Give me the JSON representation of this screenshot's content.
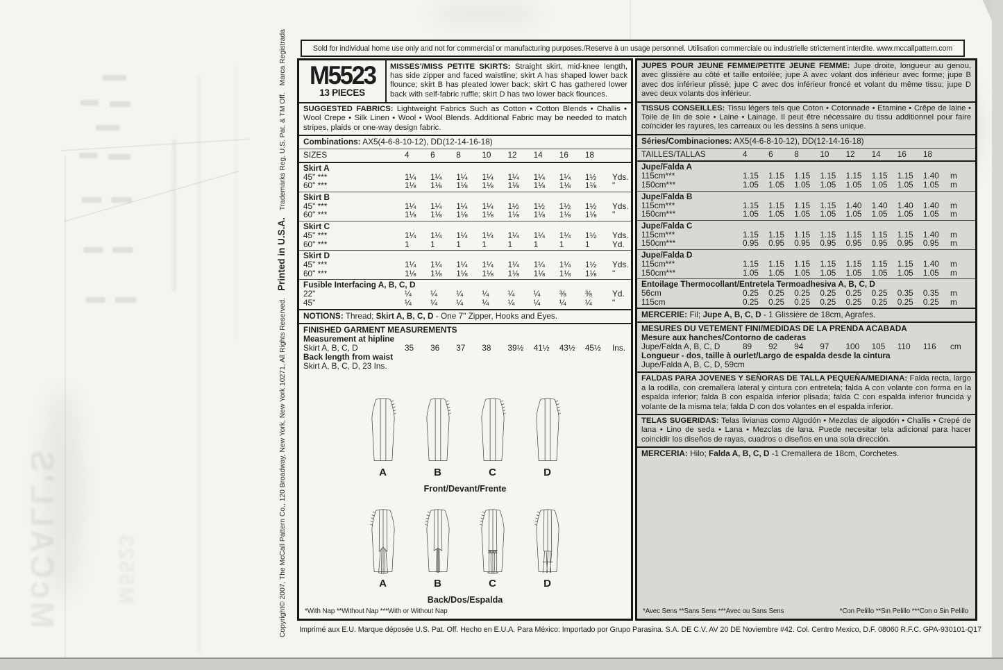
{
  "page": {
    "top_notice": "Sold for individual home use only and not for commercial or manufacturing purposes./Reserve à un usage personnel. Utilisation commerciale ou industrielle strictement interdite. www.mccallpattern.com",
    "bottom_notice": "Imprimé aux E.U. Marque déposée U.S. Pat. Off. Hecho en E.U.A. Para México: Importado por Grupo Parasina. S.A. DE C.V. AV 20 DE Noviembre #42.  Col. Centro Mexico, D.F. 08060 R.F.C. GPA-930101-Q17",
    "side_copyright": "Copyright© 2007, The McCall Pattern Co., 120 Broadway, New York, New York 10271, All Rights Reserved.",
    "side_printed": "Printed in U.S.A.",
    "side_trademarks": "Trademarks Reg. U.S. Pat. & TM Off.",
    "side_marca": "Marca Registrada",
    "ghost_brand": "McCALL'S",
    "ghost_number": "M5523"
  },
  "english": {
    "pattern_number": "M5523",
    "pieces": "13 PIECES",
    "description_title": "MISSES'/MISS PETITE SKIRTS:",
    "description_body": " Straight skirt, mid-knee length, has side zipper and faced waistline; skirt A has shaped lower back flounce; skirt B has pleated lower back; skirt C has gathered lower back with self-fabric ruffle; skirt D has two lower back flounces.",
    "fabrics_title": "SUGGESTED FABRICS:",
    "fabrics_body": " Lightweight Fabrics Such as Cotton • Cotton Blends • Challis • Wool Crepe • Silk Linen • Wool • Wool Blends. Additional Fabric may be needed to match stripes, plaids or one-way design fabric.",
    "combinations_label": "Combinations:",
    "combinations_value": " AX5(4-6-8-10-12), DD(12-14-16-18)",
    "sizes_label": "SIZES",
    "sizes": [
      "4",
      "6",
      "8",
      "10",
      "12",
      "14",
      "16",
      "18"
    ],
    "table": [
      {
        "name": "Skirt A",
        "rows": [
          {
            "label": "45\" ***",
            "values": [
              "1¼",
              "1¼",
              "1¼",
              "1¼",
              "1¼",
              "1¼",
              "1¼",
              "1½"
            ],
            "unit": "Yds."
          },
          {
            "label": "60\" ***",
            "values": [
              "1⅛",
              "1⅛",
              "1⅛",
              "1⅛",
              "1⅛",
              "1⅛",
              "1⅛",
              "1⅛"
            ],
            "unit": "\""
          }
        ]
      },
      {
        "name": "Skirt B",
        "rows": [
          {
            "label": "45\" ***",
            "values": [
              "1¼",
              "1¼",
              "1¼",
              "1¼",
              "1½",
              "1½",
              "1½",
              "1½"
            ],
            "unit": "Yds."
          },
          {
            "label": "60\" ***",
            "values": [
              "1⅛",
              "1⅛",
              "1⅛",
              "1⅛",
              "1⅛",
              "1⅛",
              "1⅛",
              "1⅛"
            ],
            "unit": "\""
          }
        ]
      },
      {
        "name": "Skirt C",
        "rows": [
          {
            "label": "45\" ***",
            "values": [
              "1¼",
              "1¼",
              "1¼",
              "1¼",
              "1¼",
              "1¼",
              "1¼",
              "1½"
            ],
            "unit": "Yds."
          },
          {
            "label": "60\" ***",
            "values": [
              "1",
              "1",
              "1",
              "1",
              "1",
              "1",
              "1",
              "1"
            ],
            "unit": "Yd."
          }
        ]
      },
      {
        "name": "Skirt D",
        "rows": [
          {
            "label": "45\" ***",
            "values": [
              "1¼",
              "1¼",
              "1¼",
              "1¼",
              "1¼",
              "1¼",
              "1¼",
              "1½"
            ],
            "unit": "Yds."
          },
          {
            "label": "60\" ***",
            "values": [
              "1⅛",
              "1⅛",
              "1⅛",
              "1⅛",
              "1⅛",
              "1⅛",
              "1⅛",
              "1⅛"
            ],
            "unit": "\""
          }
        ]
      },
      {
        "name": "Fusible Interfacing A, B, C, D",
        "rows": [
          {
            "label": "22\"",
            "values": [
              "¼",
              "¼",
              "¼",
              "¼",
              "¼",
              "¼",
              "⅜",
              "⅜"
            ],
            "unit": "Yd."
          },
          {
            "label": "45\"",
            "values": [
              "¼",
              "¼",
              "¼",
              "¼",
              "¼",
              "¼",
              "¼",
              "¼"
            ],
            "unit": "\""
          }
        ]
      }
    ],
    "notions_label": "NOTIONS:",
    "notions_pre": " Thread; ",
    "notions_bold": "Skirt A, B, C, D",
    "notions_post": " - One 7\" Zipper, Hooks and Eyes.",
    "finished_title": "FINISHED GARMENT MEASUREMENTS",
    "hipline_title": "Measurement at hipline",
    "hipline_label": "Skirt A, B, C, D",
    "hipline_values": [
      "35",
      "36",
      "37",
      "38",
      "39½",
      "41½",
      "43½",
      "45½"
    ],
    "hipline_unit": "Ins.",
    "backlength_title": "Back length from waist",
    "backlength_value": "Skirt A, B, C, D, 23 Ins.",
    "views": [
      "A",
      "B",
      "C",
      "D"
    ],
    "front_caption": "Front/Devant/Frente",
    "back_caption": "Back/Dos/Espalda",
    "footnote": "*With Nap **Without Nap ***With or Without Nap"
  },
  "french": {
    "description_title": "JUPES POUR JEUNE FEMME/PETITE JEUNE FEMME:",
    "description_body": " Jupe droite, longueur au genou, avec glissière au côté et taille entoilée; jupe A avec volant dos inférieur avec forme; jupe B avec dos inférieur plissé; jupe C avec dos inférieur froncé et volant du même tissu; jupe D avec deux volants dos inférieur.",
    "fabrics_title": "TISSUS CONSEILLES:",
    "fabrics_body": " Tissu légers tels que Coton • Cotonnade • Etamine • Crêpe de laine • Toile de lin de soie • Laine • Lainage. Il peut être nécessaire du tissu additionnel pour faire coïncider les rayures, les carreaux ou les dessins à sens unique.",
    "combinations_label": "Séries/Combinaciones:",
    "combinations_value": " AX5(4-6-8-10-12), DD(12-14-16-18)",
    "sizes_label": "TAILLES/TALLAS",
    "sizes": [
      "4",
      "6",
      "8",
      "10",
      "12",
      "14",
      "16",
      "18"
    ],
    "table": [
      {
        "name": "Jupe/Falda A",
        "rows": [
          {
            "label": "115cm***",
            "values": [
              "1.15",
              "1.15",
              "1.15",
              "1.15",
              "1.15",
              "1.15",
              "1.15",
              "1.40"
            ],
            "unit": "m"
          },
          {
            "label": "150cm***",
            "values": [
              "1.05",
              "1.05",
              "1.05",
              "1.05",
              "1.05",
              "1.05",
              "1.05",
              "1.05"
            ],
            "unit": "m"
          }
        ]
      },
      {
        "name": "Jupe/Falda B",
        "rows": [
          {
            "label": "115cm***",
            "values": [
              "1.15",
              "1.15",
              "1.15",
              "1.15",
              "1.40",
              "1.40",
              "1.40",
              "1.40"
            ],
            "unit": "m"
          },
          {
            "label": "150cm***",
            "values": [
              "1.05",
              "1.05",
              "1.05",
              "1.05",
              "1.05",
              "1.05",
              "1.05",
              "1.05"
            ],
            "unit": "m"
          }
        ]
      },
      {
        "name": "Jupe/Falda C",
        "rows": [
          {
            "label": "115cm***",
            "values": [
              "1.15",
              "1.15",
              "1.15",
              "1.15",
              "1.15",
              "1.15",
              "1.15",
              "1.40"
            ],
            "unit": "m"
          },
          {
            "label": "150cm***",
            "values": [
              "0.95",
              "0.95",
              "0.95",
              "0.95",
              "0.95",
              "0.95",
              "0.95",
              "0.95"
            ],
            "unit": "m"
          }
        ]
      },
      {
        "name": "Jupe/Falda D",
        "rows": [
          {
            "label": "115cm***",
            "values": [
              "1.15",
              "1.15",
              "1.15",
              "1.15",
              "1.15",
              "1.15",
              "1.15",
              "1.40"
            ],
            "unit": "m"
          },
          {
            "label": "150cm***",
            "values": [
              "1.05",
              "1.05",
              "1.05",
              "1.05",
              "1.05",
              "1.05",
              "1.05",
              "1.05"
            ],
            "unit": "m"
          }
        ]
      },
      {
        "name": "Entoilage Thermocollant/Entretela Termoadhesiva A, B, C, D",
        "rows": [
          {
            "label": "56cm",
            "values": [
              "0.25",
              "0.25",
              "0.25",
              "0.25",
              "0.25",
              "0.25",
              "0.35",
              "0.35"
            ],
            "unit": "m"
          },
          {
            "label": "115cm",
            "values": [
              "0.25",
              "0.25",
              "0.25",
              "0.25",
              "0.25",
              "0.25",
              "0.25",
              "0.25"
            ],
            "unit": "m"
          }
        ]
      }
    ],
    "mercerie_label": "MERCERIE:",
    "mercerie_pre": " Fil; ",
    "mercerie_bold": "Jupe A, B, C, D",
    "mercerie_post": " - 1 Glissière de 18cm, Agrafes.",
    "mesures_title": "MESURES DU VETEMENT FINI/MEDIDAS DE LA PRENDA ACABADA",
    "hanches_title": "Mesure aux hanches/Contorno de caderas",
    "hanches_label": "Jupe/Falda A, B, C, D",
    "hanches_values": [
      "89",
      "92",
      "94",
      "97",
      "100",
      "105",
      "110",
      "116"
    ],
    "hanches_unit": "cm",
    "longueur_title": "Longueur - dos, taille à ourlet/Largo de espalda desde la cintura",
    "longueur_value": "Jupe/Falda A, B, C, D, 59cm",
    "faldas_title": "FALDAS PARA JOVENES Y SEÑORAS DE TALLA PEQUEÑA/MEDIANA:",
    "faldas_body": " Falda recta, largo a la rodilla, con cremallera lateral y cintura con entretela; falda A con volante con forma en la espalda inferior; falda B con espalda inferior plisada; falda C con espalda inferior fruncida y volante de la misma tela; falda D con dos volantes en el espalda inferior.",
    "telas_title": "TELAS SUGERIDAS:",
    "telas_body": " Telas livianas como Algodón • Mezclas de algodón • Challis • Crepé de lana • Lino de seda • Lana • Mezclas de lana. Puede necesitar tela adicional para hacer coincidir los diseños de rayas, cuadros o diseños en una sola dirección.",
    "merceria_label": "MERCERIA:",
    "merceria_pre": " Hilo; ",
    "merceria_bold": "Falda A, B, C, D",
    "merceria_post": " -1 Cremallera de 18cm, Corchetes.",
    "footnote_left": "*Avec Sens **Sans Sens ***Avec ou Sans Sens",
    "footnote_right": "*Con Pelillo **Sin Pelillo ***Con o Sin Pelillo"
  }
}
